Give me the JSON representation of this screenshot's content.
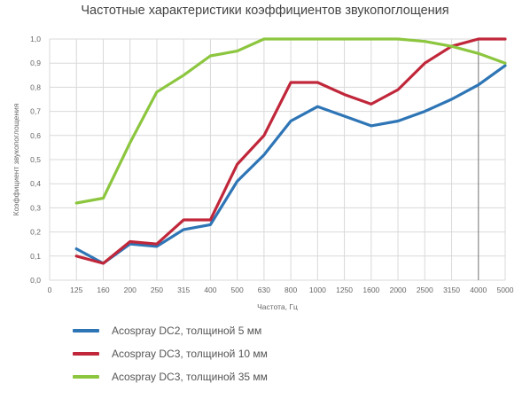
{
  "chart_data": {
    "type": "line",
    "title": "Частотные характеристики коэффициентов звукопоглощения",
    "xlabel": "Частота, Гц",
    "ylabel": "Коэффициент звукопоглощения",
    "categories": [
      "0",
      "125",
      "160",
      "200",
      "250",
      "315",
      "400",
      "500",
      "630",
      "800",
      "1000",
      "1250",
      "1600",
      "2000",
      "2500",
      "3150",
      "4000",
      "5000"
    ],
    "yticks": [
      "0,0",
      "0,1",
      "0,2",
      "0,3",
      "0,4",
      "0,5",
      "0,6",
      "0,7",
      "0,8",
      "0,9",
      "1,0"
    ],
    "ylim": [
      0,
      1.0
    ],
    "grid": true,
    "legend_position": "bottom-left",
    "series": [
      {
        "name": "Acospray DC2, толщиной 5 мм",
        "color": "#2e75b6",
        "values": [
          null,
          0.13,
          0.07,
          0.15,
          0.14,
          0.21,
          0.23,
          0.41,
          0.52,
          0.66,
          0.72,
          0.68,
          0.64,
          0.66,
          0.7,
          0.75,
          0.81,
          0.89
        ]
      },
      {
        "name": "Acospray DC3, толщиной 10 мм",
        "color": "#c0273a",
        "values": [
          null,
          0.1,
          0.07,
          0.16,
          0.15,
          0.25,
          0.25,
          0.48,
          0.6,
          0.82,
          0.82,
          0.77,
          0.73,
          0.79,
          0.9,
          0.97,
          1.0,
          1.0
        ]
      },
      {
        "name": "Acospray DC3, толщиной 35 мм",
        "color": "#8cc63f",
        "values": [
          null,
          0.32,
          0.34,
          0.57,
          0.78,
          0.85,
          0.93,
          0.95,
          1.0,
          1.0,
          1.0,
          1.0,
          1.0,
          1.0,
          0.99,
          0.97,
          0.94,
          0.9
        ]
      }
    ]
  }
}
